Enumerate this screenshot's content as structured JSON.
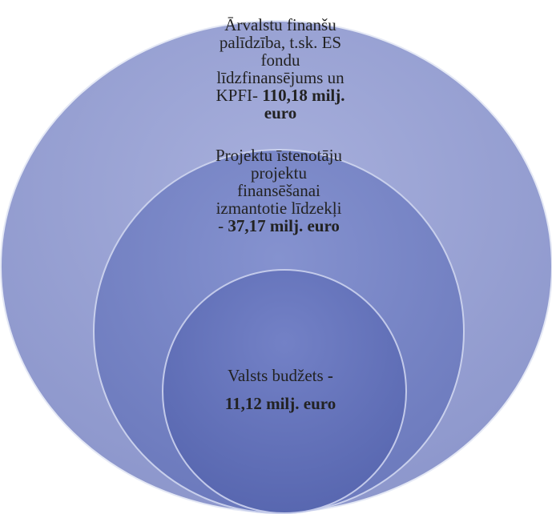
{
  "diagram": {
    "type": "nested-circles",
    "colors": {
      "outer_fill": "#9aa3d3",
      "middle_fill": "#7583c4",
      "inner_fill": "#6170b8",
      "edge_highlight": "#dfe4f3"
    },
    "outer": {
      "line1": "Ārvalstu finanšu",
      "line2": "palīdzība, t.sk. ES",
      "line3": "fondu",
      "line4": "līdzfinansējums  un",
      "line5_prefix": "KPFI-  ",
      "line5_value": "110,18 milj.",
      "line6": "euro"
    },
    "middle": {
      "line1": "Projektu īstenotāju",
      "line2": "projektu",
      "line3": "finansēšanai",
      "line4": "izmantotie līdzekļi",
      "line5_prefix": "- ",
      "line5_value": "37,17 milj. euro"
    },
    "inner": {
      "line1": "Valsts budžets ",
      "line1_dash": "-",
      "line2": "11,12 milj. euro"
    }
  }
}
